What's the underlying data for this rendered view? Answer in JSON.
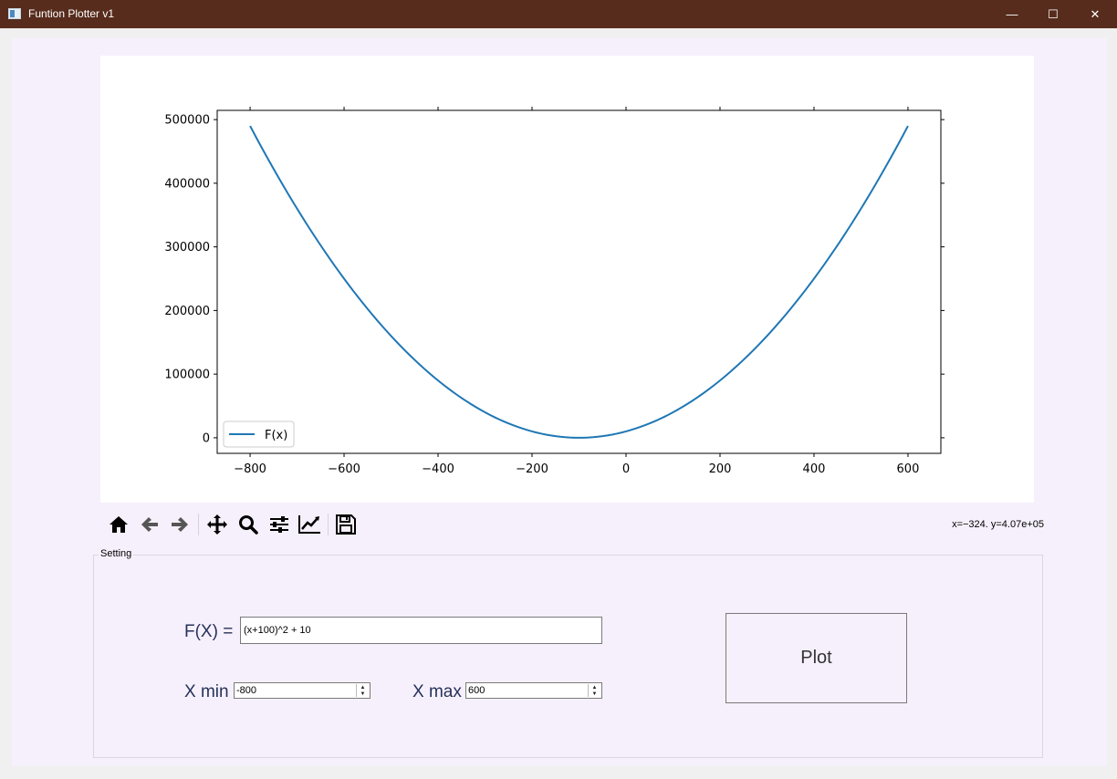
{
  "window": {
    "title": "Funtion Plotter v1",
    "minimize_glyph": "—",
    "maximize_glyph": "☐",
    "close_glyph": "✕"
  },
  "toolbar": {
    "icons": [
      "home-icon",
      "back-arrow-icon",
      "forward-arrow-icon",
      "pan-icon",
      "zoom-icon",
      "configure-subplots-icon",
      "edit-axes-icon",
      "save-icon"
    ],
    "coords": "x=−324. y=4.07e+05"
  },
  "settings": {
    "group_title": "Setting",
    "fx_label": "F(X) =",
    "fx_value": "(x+100)^2 + 10",
    "xmin_label": "X min",
    "xmin_value": "-800",
    "xmax_label": "X max",
    "xmax_value": "600",
    "plot_label": "Plot"
  },
  "colors": {
    "line": "#1f77b4",
    "titlebar": "#572c1d",
    "panel": "#f6f0fc"
  },
  "chart_data": {
    "type": "line",
    "function": "(x+100)^2 + 10",
    "x": [
      -800,
      -700,
      -600,
      -500,
      -400,
      -300,
      -200,
      -100,
      0,
      100,
      200,
      300,
      400,
      500,
      600
    ],
    "series": [
      {
        "name": "F(x)",
        "values": [
          490010,
          360010,
          250010,
          160010,
          90010,
          40010,
          10010,
          10,
          10010,
          40010,
          90010,
          160010,
          250010,
          360010,
          490010
        ]
      }
    ],
    "xlim": [
      -870,
      670
    ],
    "ylim": [
      -24500,
      514500
    ],
    "x_ticks": [
      -800,
      -600,
      -400,
      -200,
      0,
      200,
      400,
      600
    ],
    "x_tick_labels": [
      "−800",
      "−600",
      "−400",
      "−200",
      "0",
      "200",
      "400",
      "600"
    ],
    "y_ticks": [
      0,
      100000,
      200000,
      300000,
      400000,
      500000
    ],
    "y_tick_labels": [
      "0",
      "100000",
      "200000",
      "300000",
      "400000",
      "500000"
    ],
    "legend": "lower-left",
    "grid": false
  }
}
